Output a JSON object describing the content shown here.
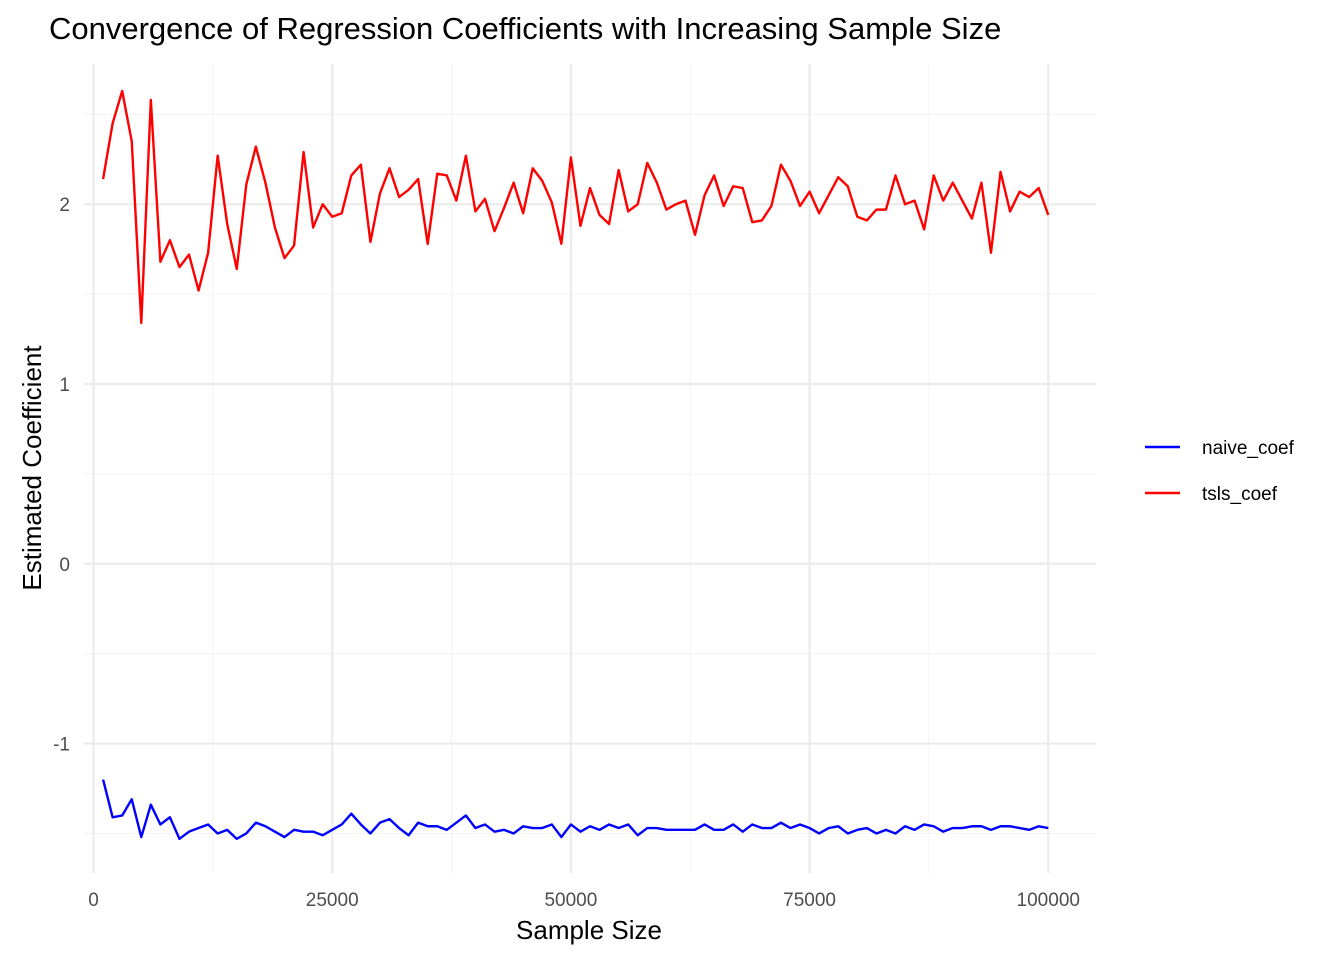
{
  "chart_data": {
    "type": "line",
    "title": "Convergence of Regression Coefficients with Increasing Sample Size",
    "xlabel": "Sample Size",
    "ylabel": "Estimated Coefficient",
    "xlim": [
      -1000,
      105000
    ],
    "ylim": [
      -1.72,
      2.78
    ],
    "x_ticks": [
      0,
      25000,
      50000,
      75000,
      100000
    ],
    "x_tick_labels": [
      "0",
      "25000",
      "50000",
      "75000",
      "100000"
    ],
    "y_ticks": [
      -1,
      0,
      1,
      2
    ],
    "y_tick_labels": [
      "-1",
      "0",
      "1",
      "2"
    ],
    "grid": true,
    "legend_position": "right",
    "x": [
      1000,
      2000,
      3000,
      4000,
      5000,
      6000,
      7000,
      8000,
      9000,
      10000,
      11000,
      12000,
      13000,
      14000,
      15000,
      16000,
      17000,
      18000,
      19000,
      20000,
      21000,
      22000,
      23000,
      24000,
      25000,
      26000,
      27000,
      28000,
      29000,
      30000,
      31000,
      32000,
      33000,
      34000,
      35000,
      36000,
      37000,
      38000,
      39000,
      40000,
      41000,
      42000,
      43000,
      44000,
      45000,
      46000,
      47000,
      48000,
      49000,
      50000,
      51000,
      52000,
      53000,
      54000,
      55000,
      56000,
      57000,
      58000,
      59000,
      60000,
      61000,
      62000,
      63000,
      64000,
      65000,
      66000,
      67000,
      68000,
      69000,
      70000,
      71000,
      72000,
      73000,
      74000,
      75000,
      76000,
      77000,
      78000,
      79000,
      80000,
      81000,
      82000,
      83000,
      84000,
      85000,
      86000,
      87000,
      88000,
      89000,
      90000,
      91000,
      92000,
      93000,
      94000,
      95000,
      96000,
      97000,
      98000,
      99000,
      100000
    ],
    "series": [
      {
        "name": "naive_coef",
        "color": "#0000ff",
        "values": [
          -1.2,
          -1.41,
          -1.4,
          -1.31,
          -1.52,
          -1.34,
          -1.45,
          -1.41,
          -1.53,
          -1.49,
          -1.47,
          -1.45,
          -1.5,
          -1.48,
          -1.53,
          -1.5,
          -1.44,
          -1.46,
          -1.49,
          -1.52,
          -1.48,
          -1.49,
          -1.49,
          -1.51,
          -1.48,
          -1.45,
          -1.39,
          -1.45,
          -1.5,
          -1.44,
          -1.42,
          -1.47,
          -1.51,
          -1.44,
          -1.46,
          -1.46,
          -1.48,
          -1.44,
          -1.4,
          -1.47,
          -1.45,
          -1.49,
          -1.48,
          -1.5,
          -1.46,
          -1.47,
          -1.47,
          -1.45,
          -1.52,
          -1.45,
          -1.49,
          -1.46,
          -1.48,
          -1.45,
          -1.47,
          -1.45,
          -1.51,
          -1.47,
          -1.47,
          -1.48,
          -1.48,
          -1.48,
          -1.48,
          -1.45,
          -1.48,
          -1.48,
          -1.45,
          -1.49,
          -1.45,
          -1.47,
          -1.47,
          -1.44,
          -1.47,
          -1.45,
          -1.47,
          -1.5,
          -1.47,
          -1.46,
          -1.5,
          -1.48,
          -1.47,
          -1.5,
          -1.48,
          -1.5,
          -1.46,
          -1.48,
          -1.45,
          -1.46,
          -1.49,
          -1.47,
          -1.47,
          -1.46,
          -1.46,
          -1.48,
          -1.46,
          -1.46,
          -1.47,
          -1.48,
          -1.46,
          -1.47
        ]
      },
      {
        "name": "tsls_coef",
        "color": "#ff0000",
        "values": [
          2.14,
          2.45,
          2.63,
          2.35,
          1.34,
          2.58,
          1.68,
          1.8,
          1.65,
          1.72,
          1.52,
          1.73,
          2.27,
          1.89,
          1.64,
          2.11,
          2.32,
          2.12,
          1.87,
          1.7,
          1.77,
          2.29,
          1.87,
          2.0,
          1.93,
          1.95,
          2.16,
          2.22,
          1.79,
          2.06,
          2.2,
          2.04,
          2.08,
          2.14,
          1.78,
          2.17,
          2.16,
          2.02,
          2.27,
          1.96,
          2.03,
          1.85,
          1.98,
          2.12,
          1.95,
          2.2,
          2.13,
          2.01,
          1.78,
          2.26,
          1.88,
          2.09,
          1.94,
          1.89,
          2.19,
          1.96,
          2.0,
          2.23,
          2.12,
          1.97,
          2.0,
          2.02,
          1.83,
          2.05,
          2.16,
          1.99,
          2.1,
          2.09,
          1.9,
          1.91,
          1.99,
          2.22,
          2.13,
          1.99,
          2.07,
          1.95,
          2.05,
          2.15,
          2.1,
          1.93,
          1.91,
          1.97,
          1.97,
          2.16,
          2.0,
          2.02,
          1.86,
          2.16,
          2.02,
          2.12,
          2.02,
          1.92,
          2.12,
          1.73,
          2.18,
          1.96,
          2.07,
          2.04,
          2.09,
          1.94
        ]
      }
    ]
  }
}
